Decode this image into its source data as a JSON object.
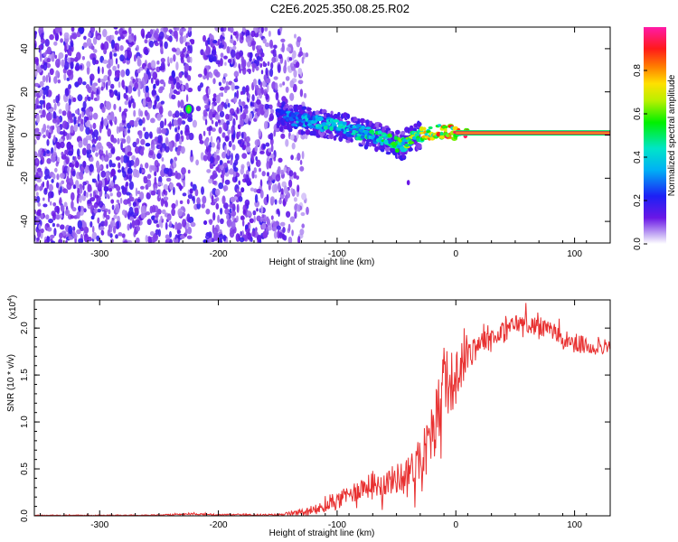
{
  "page_title": "C2E6.2025.350.08.25.R02",
  "chart_data": [
    {
      "type": "heatmap",
      "xlabel": "Height of straight line (km)",
      "ylabel": "Frequency (Hz)",
      "xlim": [
        -355,
        130
      ],
      "ylim": [
        -50,
        50
      ],
      "xticks": [
        -300,
        -200,
        -100,
        0,
        100
      ],
      "yticks": [
        -40,
        -20,
        0,
        20,
        40
      ],
      "colorbar": {
        "label": "Normalized spectral amplitude",
        "ticks": [
          0.0,
          0.2,
          0.4,
          0.6,
          0.8
        ],
        "range": [
          0,
          1
        ]
      },
      "regions": [
        {
          "name": "broadband noise",
          "x_range": [
            -355,
            -140
          ],
          "freq_range": [
            -50,
            50
          ],
          "amplitude": 0.15
        },
        {
          "name": "faint noise edge",
          "x_range": [
            -160,
            -140
          ],
          "freq_range": [
            -50,
            50
          ],
          "amplitude": 0.05
        }
      ],
      "frequency_track": {
        "x": [
          -225,
          -150,
          -140,
          -130,
          -120,
          -110,
          -100,
          -90,
          -80,
          -70,
          -60,
          -50,
          -45,
          -40,
          -30,
          -20,
          -10,
          0,
          10,
          50,
          100,
          130
        ],
        "freq": [
          12,
          9,
          8,
          7,
          6,
          5,
          4,
          3,
          1,
          0,
          -2,
          -4,
          -5,
          -3,
          0,
          1,
          2,
          1,
          1,
          1,
          1,
          1
        ],
        "amplitude": [
          0.65,
          0.25,
          0.35,
          0.4,
          0.4,
          0.45,
          0.5,
          0.45,
          0.5,
          0.5,
          0.55,
          0.6,
          0.6,
          0.65,
          0.75,
          0.85,
          0.9,
          0.95,
          1.0,
          1.0,
          1.0,
          1.0
        ]
      },
      "annotations": [
        {
          "x": -225,
          "freq": 12,
          "note": "isolated bright blob"
        },
        {
          "x": -40,
          "freq": -22,
          "note": "small outlier"
        }
      ]
    },
    {
      "type": "line",
      "xlabel": "Height of straight line (km)",
      "ylabel": "SNR (10 * v/v)",
      "yscale_label": "(x10",
      "yscale_exponent": "4",
      "xlim": [
        -355,
        130
      ],
      "ylim": [
        0,
        2.3
      ],
      "xticks": [
        -300,
        -200,
        -100,
        0,
        100
      ],
      "yticks": [
        0.0,
        0.5,
        1.0,
        1.5,
        2.0
      ],
      "ytick_labels": [
        "0.0",
        "0.5",
        "1.0",
        "1.5",
        "2.0"
      ],
      "series": [
        {
          "name": "SNR",
          "color": "#e83030",
          "x": [
            -355,
            -300,
            -250,
            -220,
            -200,
            -150,
            -120,
            -100,
            -80,
            -60,
            -50,
            -40,
            -30,
            -20,
            -10,
            0,
            10,
            20,
            30,
            40,
            50,
            60,
            70,
            80,
            90,
            100,
            110,
            120,
            130
          ],
          "base": [
            0.005,
            0.005,
            0.008,
            0.02,
            0.01,
            0.01,
            0.05,
            0.15,
            0.3,
            0.35,
            0.4,
            0.45,
            0.6,
            0.85,
            1.4,
            1.45,
            1.75,
            1.85,
            1.9,
            1.95,
            2.05,
            2.05,
            2.0,
            2.0,
            1.85,
            1.85,
            1.8,
            1.8,
            1.8
          ],
          "noise": [
            0.004,
            0.004,
            0.005,
            0.01,
            0.008,
            0.01,
            0.05,
            0.09,
            0.12,
            0.14,
            0.16,
            0.18,
            0.25,
            0.35,
            0.4,
            0.3,
            0.2,
            0.15,
            0.12,
            0.12,
            0.1,
            0.1,
            0.1,
            0.1,
            0.1,
            0.1,
            0.1,
            0.08,
            0.08
          ]
        }
      ]
    }
  ]
}
